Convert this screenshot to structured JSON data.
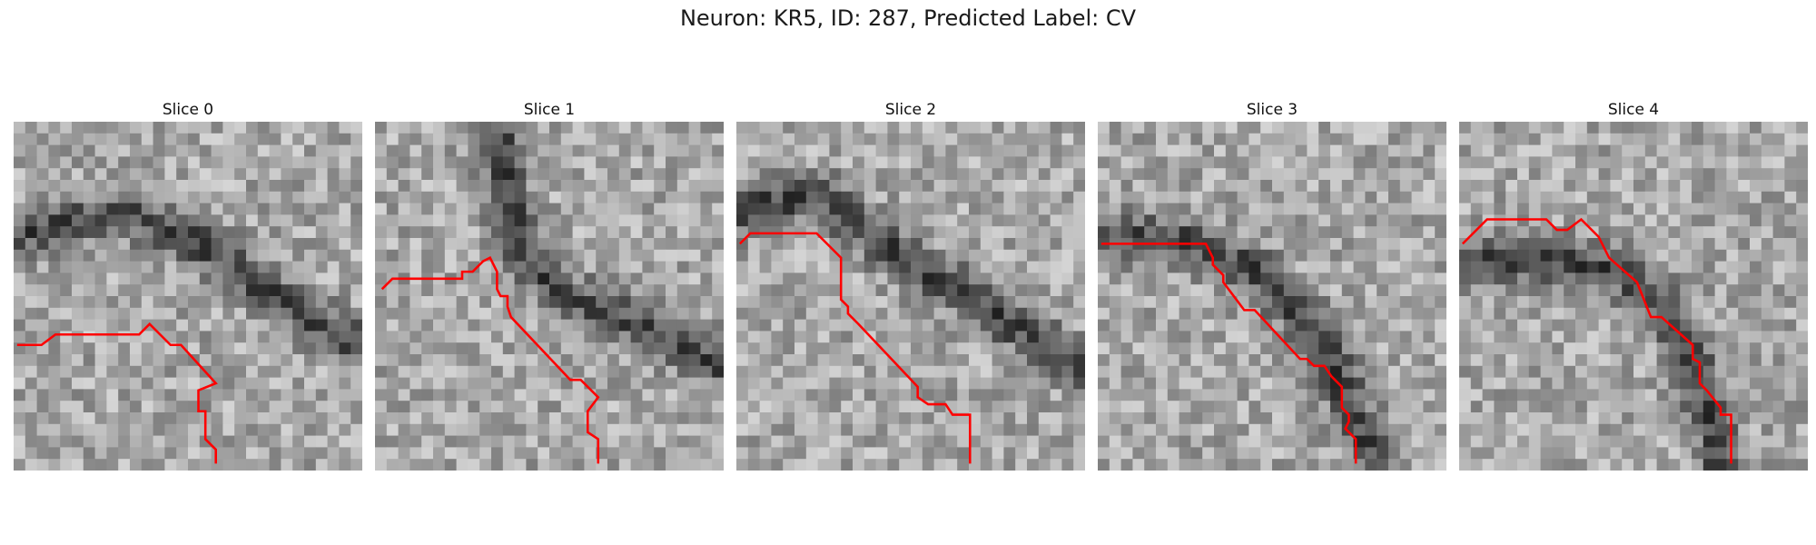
{
  "figure": {
    "title": "Neuron: KR5, ID: 287, Predicted Label: CV",
    "trace_color": "#ff0000",
    "grid_size": 30,
    "panels": [
      {
        "label": "Slice 0",
        "dark_band": [
          [
            0.0,
            0.33
          ],
          [
            0.15,
            0.29
          ],
          [
            0.33,
            0.27
          ],
          [
            0.5,
            0.33
          ],
          [
            0.65,
            0.43
          ],
          [
            0.8,
            0.53
          ],
          [
            0.95,
            0.62
          ],
          [
            1.0,
            0.64
          ]
        ],
        "trace": [
          [
            0.01,
            0.64
          ],
          [
            0.08,
            0.64
          ],
          [
            0.12,
            0.61
          ],
          [
            0.36,
            0.61
          ],
          [
            0.39,
            0.58
          ],
          [
            0.45,
            0.64
          ],
          [
            0.48,
            0.64
          ],
          [
            0.58,
            0.75
          ],
          [
            0.53,
            0.77
          ],
          [
            0.53,
            0.83
          ],
          [
            0.55,
            0.83
          ],
          [
            0.55,
            0.91
          ],
          [
            0.58,
            0.94
          ],
          [
            0.58,
            0.98
          ]
        ]
      },
      {
        "label": "Slice 1",
        "dark_band": [
          [
            0.35,
            0.0
          ],
          [
            0.38,
            0.2
          ],
          [
            0.42,
            0.38
          ],
          [
            0.55,
            0.5
          ],
          [
            0.7,
            0.56
          ],
          [
            0.85,
            0.63
          ],
          [
            1.0,
            0.7
          ]
        ],
        "trace": [
          [
            0.02,
            0.48
          ],
          [
            0.05,
            0.45
          ],
          [
            0.25,
            0.45
          ],
          [
            0.25,
            0.43
          ],
          [
            0.28,
            0.43
          ],
          [
            0.31,
            0.4
          ],
          [
            0.33,
            0.39
          ],
          [
            0.35,
            0.43
          ],
          [
            0.35,
            0.48
          ],
          [
            0.36,
            0.5
          ],
          [
            0.38,
            0.5
          ],
          [
            0.38,
            0.53
          ],
          [
            0.39,
            0.56
          ],
          [
            0.56,
            0.74
          ],
          [
            0.59,
            0.74
          ],
          [
            0.64,
            0.79
          ],
          [
            0.61,
            0.83
          ],
          [
            0.61,
            0.89
          ],
          [
            0.64,
            0.91
          ],
          [
            0.64,
            0.98
          ]
        ]
      },
      {
        "label": "Slice 2",
        "dark_band": [
          [
            0.0,
            0.27
          ],
          [
            0.1,
            0.23
          ],
          [
            0.25,
            0.22
          ],
          [
            0.35,
            0.3
          ],
          [
            0.5,
            0.4
          ],
          [
            0.63,
            0.48
          ],
          [
            0.72,
            0.54
          ],
          [
            0.85,
            0.62
          ],
          [
            1.0,
            0.7
          ]
        ],
        "trace": [
          [
            0.01,
            0.35
          ],
          [
            0.04,
            0.32
          ],
          [
            0.23,
            0.32
          ],
          [
            0.26,
            0.35
          ],
          [
            0.3,
            0.39
          ],
          [
            0.3,
            0.51
          ],
          [
            0.32,
            0.53
          ],
          [
            0.32,
            0.55
          ],
          [
            0.35,
            0.58
          ],
          [
            0.52,
            0.76
          ],
          [
            0.52,
            0.79
          ],
          [
            0.55,
            0.81
          ],
          [
            0.6,
            0.81
          ],
          [
            0.62,
            0.84
          ],
          [
            0.67,
            0.84
          ],
          [
            0.67,
            0.98
          ]
        ]
      },
      {
        "label": "Slice 3",
        "dark_band": [
          [
            0.0,
            0.33
          ],
          [
            0.2,
            0.33
          ],
          [
            0.3,
            0.36
          ],
          [
            0.45,
            0.43
          ],
          [
            0.58,
            0.55
          ],
          [
            0.65,
            0.65
          ],
          [
            0.72,
            0.8
          ],
          [
            0.78,
            0.95
          ],
          [
            0.8,
            1.0
          ]
        ],
        "trace": [
          [
            0.01,
            0.35
          ],
          [
            0.31,
            0.35
          ],
          [
            0.33,
            0.39
          ],
          [
            0.33,
            0.41
          ],
          [
            0.36,
            0.44
          ],
          [
            0.36,
            0.46
          ],
          [
            0.42,
            0.54
          ],
          [
            0.45,
            0.54
          ],
          [
            0.58,
            0.68
          ],
          [
            0.6,
            0.68
          ],
          [
            0.62,
            0.7
          ],
          [
            0.65,
            0.7
          ],
          [
            0.67,
            0.73
          ],
          [
            0.7,
            0.76
          ],
          [
            0.7,
            0.82
          ],
          [
            0.72,
            0.84
          ],
          [
            0.72,
            0.86
          ],
          [
            0.71,
            0.88
          ],
          [
            0.74,
            0.91
          ],
          [
            0.74,
            0.98
          ]
        ]
      },
      {
        "label": "Slice 4",
        "dark_band": [
          [
            0.0,
            0.4
          ],
          [
            0.15,
            0.4
          ],
          [
            0.3,
            0.4
          ],
          [
            0.45,
            0.43
          ],
          [
            0.55,
            0.5
          ],
          [
            0.62,
            0.58
          ],
          [
            0.67,
            0.68
          ],
          [
            0.7,
            0.78
          ],
          [
            0.73,
            0.88
          ],
          [
            0.75,
            1.0
          ]
        ],
        "trace": [
          [
            0.01,
            0.35
          ],
          [
            0.08,
            0.28
          ],
          [
            0.25,
            0.28
          ],
          [
            0.28,
            0.31
          ],
          [
            0.31,
            0.31
          ],
          [
            0.35,
            0.28
          ],
          [
            0.4,
            0.33
          ],
          [
            0.43,
            0.39
          ],
          [
            0.51,
            0.46
          ],
          [
            0.53,
            0.51
          ],
          [
            0.55,
            0.56
          ],
          [
            0.58,
            0.56
          ],
          [
            0.67,
            0.64
          ],
          [
            0.67,
            0.68
          ],
          [
            0.69,
            0.69
          ],
          [
            0.69,
            0.71
          ],
          [
            0.69,
            0.75
          ],
          [
            0.71,
            0.77
          ],
          [
            0.75,
            0.82
          ],
          [
            0.75,
            0.84
          ],
          [
            0.78,
            0.84
          ],
          [
            0.78,
            0.98
          ]
        ]
      }
    ]
  }
}
